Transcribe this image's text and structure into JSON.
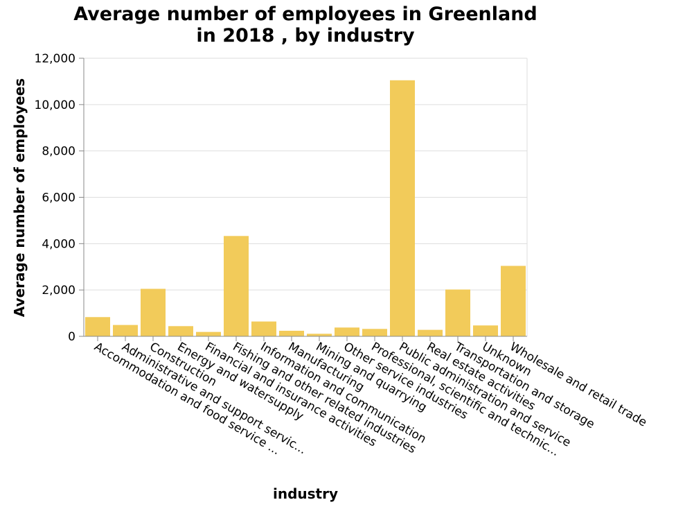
{
  "chart_data": {
    "type": "bar",
    "title": "Average number of employees in Greenland in 2018 , by industry",
    "title_lines": [
      "Average number of employees in Greenland",
      "in 2018 , by industry"
    ],
    "xlabel": "industry",
    "ylabel": "Average number of employees",
    "ylim": [
      0,
      12000
    ],
    "yticks": [
      0,
      2000,
      4000,
      6000,
      8000,
      10000,
      12000
    ],
    "ytick_labels": [
      "0",
      "2,000",
      "4,000",
      "6,000",
      "8,000",
      "10,000",
      "12,000"
    ],
    "grid": true,
    "categories": [
      "Accommodation and food service ...",
      "Administrative and support servic...",
      "Construction",
      "Energy and watersupply",
      "Financial and insurance activities",
      "Fishing and other related industries",
      "Information and communication",
      "Manufacturing",
      "Mining and quarrying",
      "Other service industries",
      "Professional, scientific and technic...",
      "Public administration and service",
      "Real estate activities",
      "Transportation and storage",
      "Unknown",
      "Wholesale and retail trade"
    ],
    "values": [
      830,
      490,
      2050,
      440,
      190,
      4330,
      640,
      240,
      110,
      380,
      320,
      11050,
      280,
      2020,
      470,
      3040
    ],
    "bar_color": "#f2cb5a"
  }
}
